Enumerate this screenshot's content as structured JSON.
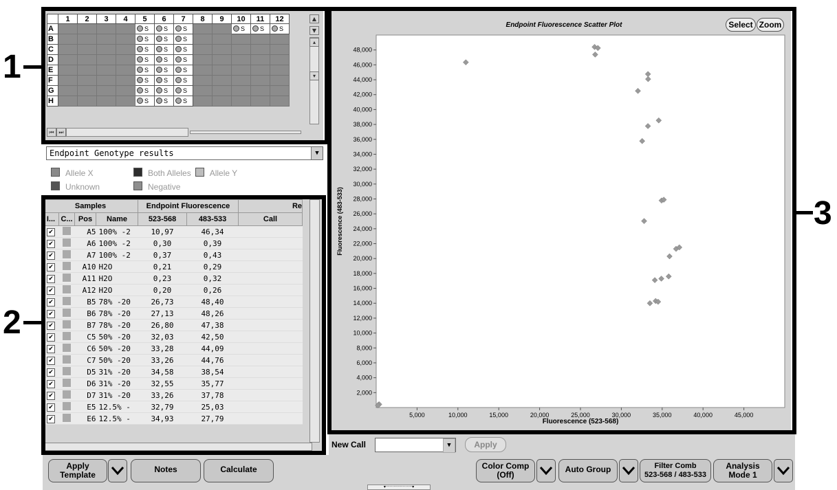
{
  "callouts": [
    "1",
    "2",
    "3"
  ],
  "plate": {
    "columns": [
      "",
      "1",
      "2",
      "3",
      "4",
      "5",
      "6",
      "7",
      "8",
      "9",
      "10",
      "11",
      "12"
    ],
    "rows": [
      "A",
      "B",
      "C",
      "D",
      "E",
      "F",
      "G",
      "H"
    ],
    "sample_label": "S"
  },
  "view_select": {
    "value": "Endpoint Genotype results"
  },
  "legend": {
    "allele_x": "Allele X",
    "both": "Both Alleles",
    "allele_y": "Allele Y",
    "unknown": "Unknown",
    "negative": "Negative"
  },
  "colors": {
    "allele_x": "#8a8a8a",
    "both": "#2e2e2e",
    "allele_y": "#bdbdbd",
    "unknown": "#555555",
    "negative": "#8f8f8f"
  },
  "table": {
    "group_headers": [
      "Samples",
      "Endpoint Fluorescence",
      "Re"
    ],
    "columns": [
      "I...",
      "C...",
      "Pos",
      "Name",
      "523-568",
      "483-533",
      "Call"
    ],
    "rows": [
      {
        "pos": "A5",
        "name": "100% -2",
        "f1": "10,97",
        "f2": "46,34"
      },
      {
        "pos": "A6",
        "name": "100% -2",
        "f1": "0,30",
        "f2": "0,39"
      },
      {
        "pos": "A7",
        "name": "100% -2",
        "f1": "0,37",
        "f2": "0,43"
      },
      {
        "pos": "A10",
        "name": "H2O",
        "f1": "0,21",
        "f2": "0,29"
      },
      {
        "pos": "A11",
        "name": "H2O",
        "f1": "0,23",
        "f2": "0,32"
      },
      {
        "pos": "A12",
        "name": "H2O",
        "f1": "0,20",
        "f2": "0,26"
      },
      {
        "pos": "B5",
        "name": "78% -20",
        "f1": "26,73",
        "f2": "48,40"
      },
      {
        "pos": "B6",
        "name": "78% -20",
        "f1": "27,13",
        "f2": "48,26"
      },
      {
        "pos": "B7",
        "name": "78% -20",
        "f1": "26,80",
        "f2": "47,38"
      },
      {
        "pos": "C5",
        "name": "50% -20",
        "f1": "32,03",
        "f2": "42,50"
      },
      {
        "pos": "C6",
        "name": "50% -20",
        "f1": "33,28",
        "f2": "44,09"
      },
      {
        "pos": "C7",
        "name": "50% -20",
        "f1": "33,26",
        "f2": "44,76"
      },
      {
        "pos": "D5",
        "name": "31% -20",
        "f1": "34,58",
        "f2": "38,54"
      },
      {
        "pos": "D6",
        "name": "31% -20",
        "f1": "32,55",
        "f2": "35,77"
      },
      {
        "pos": "D7",
        "name": "31% -20",
        "f1": "33,26",
        "f2": "37,78"
      },
      {
        "pos": "E5",
        "name": "12.5% -",
        "f1": "32,79",
        "f2": "25,03"
      },
      {
        "pos": "E6",
        "name": "12.5% -",
        "f1": "34,93",
        "f2": "27,79"
      }
    ]
  },
  "plot": {
    "title": "Endpoint Fluorescence Scatter Plot",
    "select_label": "Select",
    "zoom_label": "Zoom"
  },
  "chart_data": {
    "type": "scatter",
    "title": "Endpoint Fluorescence Scatter Plot",
    "xlabel": "Fluorescence (523-568)",
    "ylabel": "Fluorescence (483-533)",
    "xlim": [
      0,
      50000
    ],
    "ylim": [
      0,
      50000
    ],
    "xticks": [
      5000,
      10000,
      15000,
      20000,
      25000,
      30000,
      35000,
      40000,
      45000
    ],
    "xtick_labels": [
      "5,000",
      "10,000",
      "15,000",
      "20,000",
      "25,000",
      "30,000",
      "35,000",
      "40,000",
      "45,000"
    ],
    "yticks": [
      2000,
      4000,
      6000,
      8000,
      10000,
      12000,
      14000,
      16000,
      18000,
      20000,
      22000,
      24000,
      26000,
      28000,
      30000,
      32000,
      34000,
      36000,
      38000,
      40000,
      42000,
      44000,
      46000,
      48000
    ],
    "ytick_labels": [
      "2,000",
      "4,000",
      "6,000",
      "8,000",
      "10,000",
      "12,000",
      "14,000",
      "16,000",
      "18,000",
      "20,000",
      "22,000",
      "24,000",
      "26,000",
      "28,000",
      "30,000",
      "32,000",
      "34,000",
      "36,000",
      "38,000",
      "40,000",
      "42,000",
      "44,000",
      "46,000",
      "48,000"
    ],
    "grid": false,
    "points": [
      {
        "x": 300,
        "y": 400
      },
      {
        "x": 370,
        "y": 430
      },
      {
        "x": 210,
        "y": 290
      },
      {
        "x": 10970,
        "y": 46340
      },
      {
        "x": 26730,
        "y": 48400
      },
      {
        "x": 27130,
        "y": 48260
      },
      {
        "x": 26800,
        "y": 47380
      },
      {
        "x": 32030,
        "y": 42500
      },
      {
        "x": 33280,
        "y": 44090
      },
      {
        "x": 33260,
        "y": 44760
      },
      {
        "x": 34580,
        "y": 38540
      },
      {
        "x": 32550,
        "y": 35770
      },
      {
        "x": 33260,
        "y": 37780
      },
      {
        "x": 32790,
        "y": 25030
      },
      {
        "x": 34930,
        "y": 27790
      },
      {
        "x": 35200,
        "y": 27900
      },
      {
        "x": 36700,
        "y": 21300
      },
      {
        "x": 37100,
        "y": 21500
      },
      {
        "x": 35900,
        "y": 20300
      },
      {
        "x": 34100,
        "y": 17100
      },
      {
        "x": 34900,
        "y": 17300
      },
      {
        "x": 35800,
        "y": 17600
      },
      {
        "x": 33500,
        "y": 14000
      },
      {
        "x": 34200,
        "y": 14300
      },
      {
        "x": 34500,
        "y": 14200
      }
    ]
  },
  "new_call": {
    "label": "New Call",
    "value": "",
    "apply_label": "Apply"
  },
  "buttons": {
    "apply_template_1": "Apply",
    "apply_template_2": "Template",
    "notes": "Notes",
    "calculate": "Calculate",
    "color_comp_1": "Color Comp",
    "color_comp_2": "(Off)",
    "auto_group": "Auto Group",
    "filter_comb_1": "Filter Comb",
    "filter_comb_2": "523-568 / 483-533",
    "analysis_mode_1": "Analysis",
    "analysis_mode_2": "Mode 1"
  }
}
